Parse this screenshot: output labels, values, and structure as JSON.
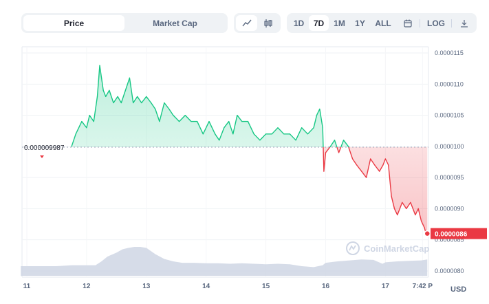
{
  "toolbar": {
    "type_tabs": [
      "Price",
      "Market Cap"
    ],
    "active_type": "Price",
    "chart_styles": [
      "line-chart-icon",
      "candlestick-icon"
    ],
    "ranges": [
      "1D",
      "7D",
      "1M",
      "1Y",
      "ALL"
    ],
    "active_range": "7D",
    "log_label": "LOG",
    "calendar_icon": "calendar-icon",
    "download_icon": "download-icon"
  },
  "watermark": "CoinMarketCap",
  "currency": "USD",
  "colors": {
    "up": "#16c784",
    "down": "#ea3943",
    "volume": "#cfd6e4"
  },
  "chart_data": {
    "type": "line",
    "x_ticks": [
      "11",
      "12",
      "13",
      "14",
      "15",
      "16",
      "17",
      "7:42 P"
    ],
    "y_ticks": [
      "0.0000115",
      "0.0000110",
      "0.0000105",
      "0.0000100",
      "0.0000095",
      "0.0000090",
      "0.0000085",
      "0.0000080"
    ],
    "ylim": [
      7.9e-06,
      1.16e-05
    ],
    "baseline": {
      "value": 9.987e-06,
      "label": "0.000009987"
    },
    "last_price": {
      "value": 8.6e-06,
      "label": "0.0000086"
    },
    "series": [
      {
        "x": [
          11.75,
          11.82,
          11.92,
          12.0,
          12.05,
          12.12,
          12.18,
          12.22,
          12.25,
          12.28,
          12.32,
          12.38,
          12.45,
          12.52,
          12.58,
          12.65,
          12.72,
          12.78,
          12.85,
          12.92,
          13.0,
          13.08,
          13.15,
          13.22,
          13.3,
          13.38,
          13.45,
          13.55,
          13.65,
          13.75,
          13.85,
          13.95,
          14.05,
          14.15,
          14.22,
          14.3,
          14.38,
          14.45,
          14.52,
          14.6,
          14.7,
          14.8,
          14.9,
          15.0,
          15.1,
          15.2,
          15.3,
          15.4,
          15.5,
          15.6,
          15.7,
          15.8,
          15.85,
          15.9,
          15.95,
          15.97,
          16.0,
          16.08,
          16.15,
          16.22,
          16.3,
          16.38,
          16.45,
          16.52,
          16.6,
          16.68,
          16.75,
          16.82,
          16.9,
          16.96,
          17.0,
          17.05,
          17.1,
          17.15,
          17.2,
          17.28,
          17.35,
          17.42,
          17.5,
          17.55,
          17.6,
          17.65,
          17.68,
          17.7
        ],
        "y": [
          1e-05,
          1.02e-05,
          1.04e-05,
          1.03e-05,
          1.05e-05,
          1.04e-05,
          1.08e-05,
          1.13e-05,
          1.11e-05,
          1.09e-05,
          1.08e-05,
          1.09e-05,
          1.07e-05,
          1.08e-05,
          1.07e-05,
          1.09e-05,
          1.11e-05,
          1.07e-05,
          1.08e-05,
          1.07e-05,
          1.08e-05,
          1.07e-05,
          1.06e-05,
          1.04e-05,
          1.07e-05,
          1.06e-05,
          1.05e-05,
          1.04e-05,
          1.05e-05,
          1.04e-05,
          1.04e-05,
          1.02e-05,
          1.04e-05,
          1.02e-05,
          1.01e-05,
          1.03e-05,
          1.04e-05,
          1.02e-05,
          1.05e-05,
          1.04e-05,
          1.04e-05,
          1.02e-05,
          1.01e-05,
          1.02e-05,
          1.02e-05,
          1.03e-05,
          1.02e-05,
          1.02e-05,
          1.01e-05,
          1.03e-05,
          1.02e-05,
          1.03e-05,
          1.05e-05,
          1.06e-05,
          1.03e-05,
          9.6e-06,
          9.9e-06,
          1e-05,
          1.01e-05,
          9.9e-06,
          1.01e-05,
          1e-05,
          9.8e-06,
          9.7e-06,
          9.6e-06,
          9.5e-06,
          9.8e-06,
          9.7e-06,
          9.6e-06,
          9.7e-06,
          9.8e-06,
          9.7e-06,
          9.2e-06,
          9e-06,
          8.9e-06,
          9.1e-06,
          9e-06,
          9.1e-06,
          8.9e-06,
          9e-06,
          8.8e-06,
          8.7e-06,
          8.6e-06,
          8.6e-06
        ]
      }
    ],
    "volume": {
      "x": [
        10.9,
        11.2,
        11.5,
        11.75,
        12.0,
        12.15,
        12.25,
        12.35,
        12.5,
        12.6,
        12.7,
        12.8,
        12.9,
        13.0,
        13.15,
        13.3,
        13.45,
        13.6,
        13.8,
        14.0,
        14.2,
        14.4,
        14.6,
        14.8,
        15.0,
        15.2,
        15.4,
        15.6,
        15.8,
        15.95,
        16.0,
        16.2,
        16.4,
        16.6,
        16.8,
        16.95,
        17.0,
        17.2,
        17.4,
        17.6,
        17.7
      ],
      "y": [
        20,
        20,
        20,
        22,
        22,
        22,
        30,
        40,
        48,
        55,
        58,
        60,
        60,
        58,
        45,
        35,
        30,
        27,
        27,
        26,
        26,
        25,
        26,
        25,
        24,
        25,
        24,
        20,
        18,
        22,
        27,
        30,
        32,
        34,
        33,
        25,
        28,
        30,
        31,
        32,
        34
      ]
    }
  }
}
